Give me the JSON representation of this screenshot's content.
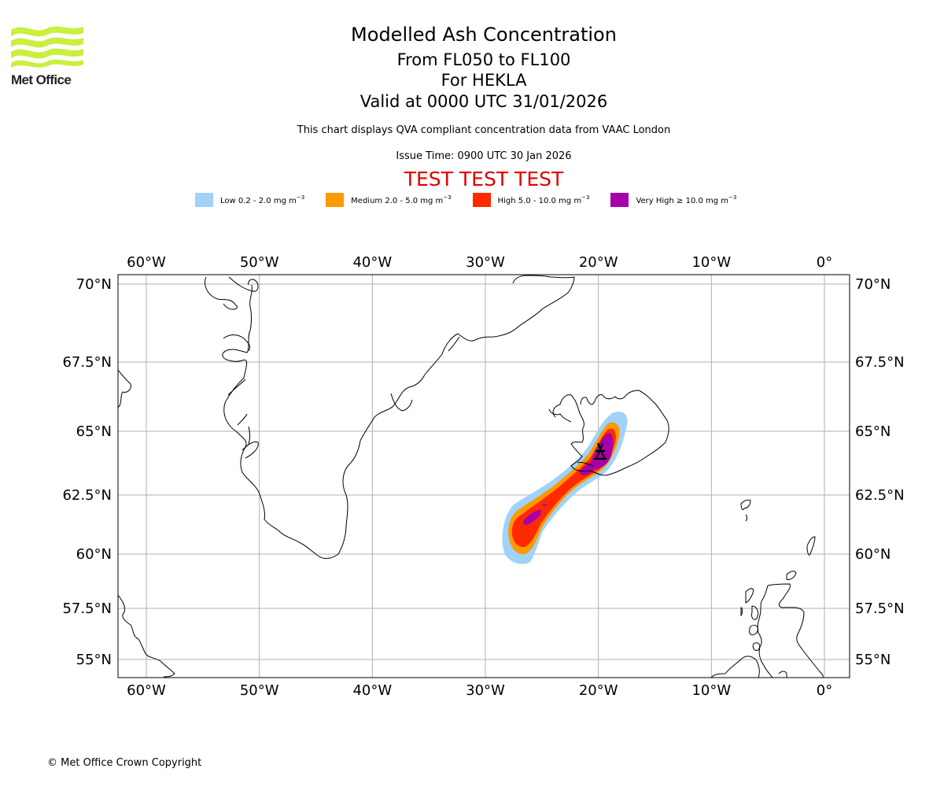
{
  "branding": {
    "logo_icon": "met-office-wave-logo-icon",
    "logo_text": "Met Office",
    "logo_color": "#c8f03c"
  },
  "header": {
    "title": "Modelled Ash Concentration",
    "level_range": "From FL050 to FL100",
    "volcano": "For HEKLA",
    "valid_time": "Valid at 0000 UTC 31/01/2026",
    "description": "This chart displays QVA compliant concentration data from VAAC London",
    "issue_time": "Issue Time: 0900 UTC 30 Jan 2026",
    "test_banner": "TEST TEST TEST",
    "test_banner_color": "#e00000"
  },
  "legend": [
    {
      "label": "Low 0.2 - 2.0 mg m",
      "unit_exp": "−3",
      "color": "#a0d2fa"
    },
    {
      "label": "Medium 2.0 - 5.0 mg m",
      "unit_exp": "−3",
      "color": "#ff9900"
    },
    {
      "label": "High 5.0 - 10.0 mg m",
      "unit_exp": "−3",
      "color": "#ff2a00"
    },
    {
      "label": "Very High ≥ 10.0 mg m",
      "unit_exp": "−3",
      "color": "#a600aa"
    }
  ],
  "chart_data": {
    "type": "map",
    "title": "Modelled Ash Concentration",
    "subtitle": "From FL050 to FL100 For HEKLA",
    "lon_ticks": [
      -60,
      -50,
      -40,
      -30,
      -20,
      -10,
      0
    ],
    "lon_tick_labels": [
      "60°W",
      "50°W",
      "40°W",
      "30°W",
      "20°W",
      "10°W",
      "0°"
    ],
    "lat_ticks": [
      70,
      67.5,
      65,
      62.5,
      60,
      57.5,
      55
    ],
    "lat_tick_labels": [
      "70°N",
      "67.5°N",
      "65°N",
      "62.5°N",
      "60°N",
      "57.5°N",
      "55°N"
    ],
    "lon_range": [
      -62.5,
      2.3
    ],
    "lat_range": [
      54.3,
      70.3
    ],
    "grid": true,
    "volcano": {
      "name": "HEKLA",
      "lon": -19.7,
      "lat": 64.0,
      "icon": "volcano-icon"
    },
    "ash_plume": {
      "orientation": "southwest from Hekla",
      "levels": [
        "Low",
        "Medium",
        "High",
        "Very High"
      ],
      "extent_approx": {
        "lon": [
          -28.2,
          -17.5
        ],
        "lat": [
          59.7,
          65.6
        ]
      }
    },
    "coastlines": [
      "Greenland",
      "Iceland",
      "Scotland",
      "Northern Ireland",
      "Faroe Islands",
      "Shetland",
      "Orkney",
      "Labrador"
    ]
  },
  "footer": {
    "copyright": "© Met Office Crown Copyright"
  }
}
